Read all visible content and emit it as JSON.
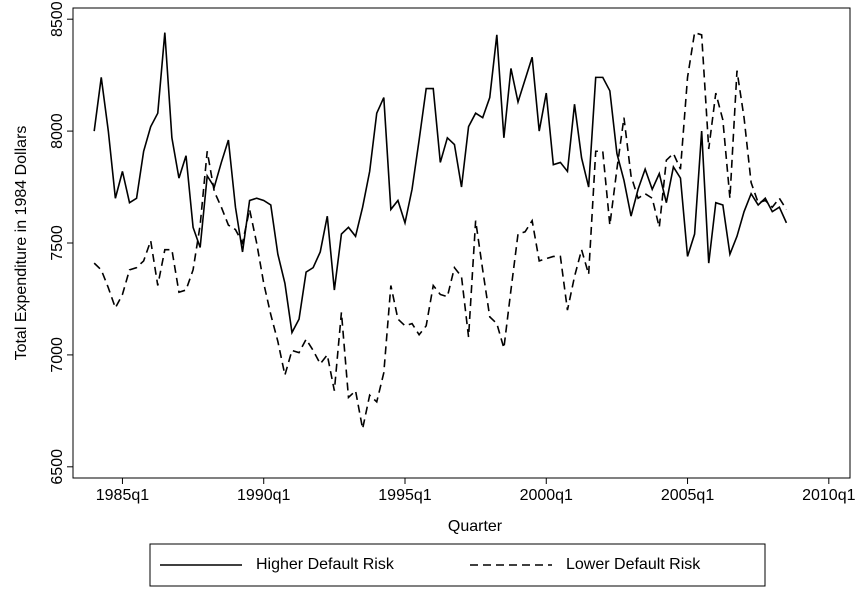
{
  "chart_data": {
    "type": "line",
    "ylabel": "Total Expenditure in 1984 Dollars",
    "xlabel": "Quarter",
    "x": [
      "1984q1",
      "1984q2",
      "1984q3",
      "1984q4",
      "1985q1",
      "1985q2",
      "1985q3",
      "1985q4",
      "1986q1",
      "1986q2",
      "1986q3",
      "1986q4",
      "1987q1",
      "1987q2",
      "1987q3",
      "1987q4",
      "1988q1",
      "1988q2",
      "1988q3",
      "1988q4",
      "1989q1",
      "1989q2",
      "1989q3",
      "1989q4",
      "1990q1",
      "1990q2",
      "1990q3",
      "1990q4",
      "1991q1",
      "1991q2",
      "1991q3",
      "1991q4",
      "1992q1",
      "1992q2",
      "1992q3",
      "1992q4",
      "1993q1",
      "1993q2",
      "1993q3",
      "1993q4",
      "1994q1",
      "1994q2",
      "1994q3",
      "1994q4",
      "1995q1",
      "1995q2",
      "1995q3",
      "1995q4",
      "1996q1",
      "1996q2",
      "1996q3",
      "1996q4",
      "1997q1",
      "1997q2",
      "1997q3",
      "1997q4",
      "1998q1",
      "1998q2",
      "1998q3",
      "1998q4",
      "1999q1",
      "1999q2",
      "1999q3",
      "1999q4",
      "2000q1",
      "2000q2",
      "2000q3",
      "2000q4",
      "2001q1",
      "2001q2",
      "2001q3",
      "2001q4",
      "2002q1",
      "2002q2",
      "2002q3",
      "2002q4",
      "2003q1",
      "2003q2",
      "2003q3",
      "2003q4",
      "2004q1",
      "2004q2",
      "2004q3",
      "2004q4",
      "2005q1",
      "2005q2",
      "2005q3",
      "2005q4",
      "2006q1",
      "2006q2",
      "2006q3",
      "2006q4",
      "2007q1",
      "2007q2",
      "2007q3",
      "2007q4",
      "2008q1",
      "2008q2",
      "2008q3"
    ],
    "series": [
      {
        "name": "Higher Default Risk",
        "color": "#000000",
        "style": "solid",
        "values": [
          8000,
          8240,
          8000,
          7700,
          7820,
          7680,
          7700,
          7910,
          8020,
          8080,
          8440,
          7970,
          7790,
          7890,
          7570,
          7480,
          7800,
          7750,
          7860,
          7960,
          7660,
          7460,
          7690,
          7700,
          7690,
          7670,
          7450,
          7320,
          7100,
          7160,
          7370,
          7390,
          7460,
          7620,
          7290,
          7540,
          7570,
          7530,
          7660,
          7820,
          8080,
          8150,
          7650,
          7690,
          7590,
          7740,
          7960,
          8190,
          8190,
          7860,
          7970,
          7940,
          7750,
          8020,
          8080,
          8060,
          8150,
          8430,
          7970,
          8280,
          8130,
          8230,
          8330,
          8000,
          8170,
          7850,
          7860,
          7820,
          8120,
          7880,
          7750,
          8240,
          8240,
          8180,
          7900,
          7780,
          7620,
          7740,
          7830,
          7740,
          7810,
          7680,
          7840,
          7790,
          7440,
          7540,
          8000,
          7410,
          7680,
          7670,
          7450,
          7530,
          7640,
          7720,
          7670,
          7700,
          7640,
          7660,
          7590
        ]
      },
      {
        "name": "Lower Default Risk",
        "color": "#000000",
        "style": "dashed",
        "values": [
          7410,
          7380,
          7300,
          7210,
          7270,
          7380,
          7390,
          7420,
          7510,
          7310,
          7470,
          7470,
          7280,
          7290,
          7380,
          7580,
          7910,
          7730,
          7660,
          7580,
          7560,
          7500,
          7650,
          7500,
          7320,
          7180,
          7060,
          6910,
          7020,
          7010,
          7070,
          7020,
          6960,
          7000,
          6840,
          7190,
          6810,
          6840,
          6670,
          6820,
          6790,
          6920,
          7310,
          7160,
          7130,
          7140,
          7090,
          7130,
          7310,
          7270,
          7260,
          7390,
          7350,
          7080,
          7600,
          7380,
          7170,
          7140,
          7030,
          7290,
          7540,
          7550,
          7600,
          7420,
          7430,
          7440,
          7440,
          7200,
          7350,
          7470,
          7360,
          7910,
          7910,
          7580,
          7830,
          8060,
          7800,
          7700,
          7720,
          7700,
          7570,
          7870,
          7900,
          7830,
          8240,
          8440,
          8430,
          7920,
          8170,
          8050,
          7700,
          8270,
          8060,
          7770,
          7680,
          7690,
          7660,
          7700,
          7650
        ]
      }
    ],
    "xlim": [
      "1983q2",
      "2010q4"
    ],
    "xticks": [
      "1985q1",
      "1990q1",
      "1995q1",
      "2000q1",
      "2005q1",
      "2010q1"
    ],
    "ylim": [
      6450,
      8550
    ],
    "yticks": [
      6500,
      7000,
      7500,
      8000,
      8500
    ],
    "legend": "bottom"
  }
}
